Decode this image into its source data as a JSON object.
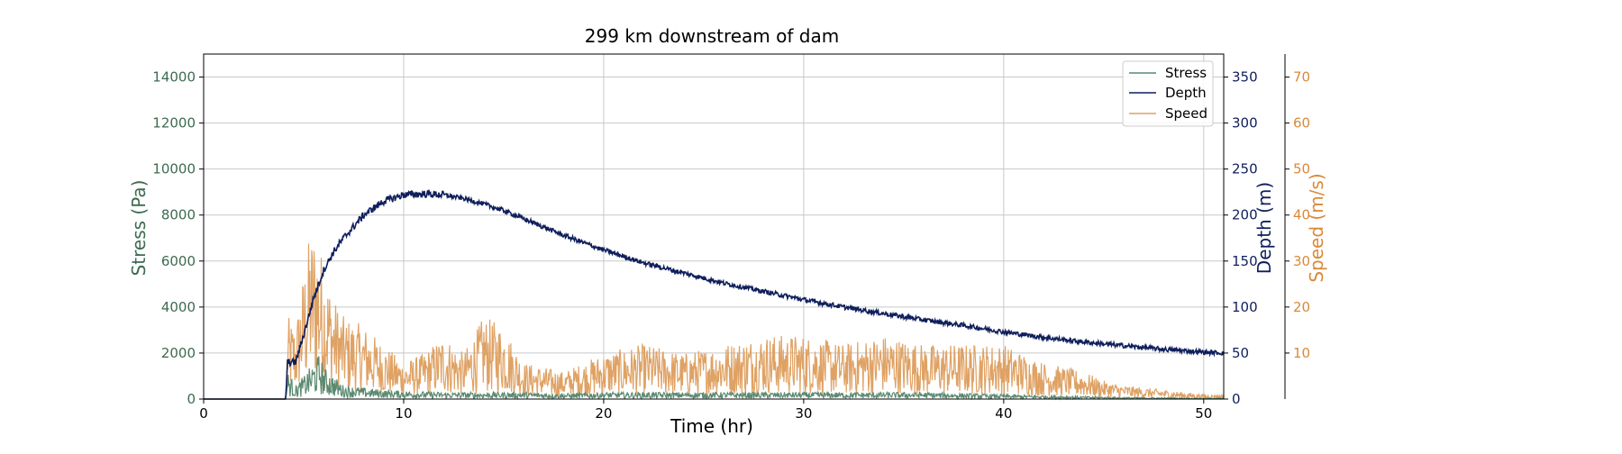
{
  "chart_data": {
    "type": "line",
    "title": "299 km downstream of dam",
    "xlabel": "Time (hr)",
    "xlim": [
      0,
      51
    ],
    "x_ticks": [
      0,
      10,
      20,
      30,
      40,
      50
    ],
    "grid": true,
    "legend_position": "top-right",
    "axes": {
      "stress": {
        "label": "Stress (Pa)",
        "lim": [
          0,
          15000
        ],
        "ticks": [
          0,
          2000,
          4000,
          6000,
          8000,
          10000,
          12000,
          14000
        ],
        "color": "#3d6b4f",
        "position": "left"
      },
      "depth": {
        "label": "Depth (m)",
        "lim": [
          0,
          375
        ],
        "ticks": [
          0,
          50,
          100,
          150,
          200,
          250,
          300,
          350
        ],
        "color": "#0f1f5c",
        "position": "right"
      },
      "speed": {
        "label": "Speed (m/s)",
        "lim": [
          0,
          75
        ],
        "ticks": [
          10,
          20,
          30,
          40,
          50,
          60,
          70
        ],
        "color": "#d98a3a",
        "position": "right-outer"
      }
    },
    "series": [
      {
        "name": "Stress",
        "axis": "stress",
        "color": "#5a8a70",
        "x": [
          0,
          4.1,
          4.2,
          4.6,
          5.0,
          5.5,
          5.8,
          6.0,
          6.5,
          7.0,
          8.0,
          9.0,
          10,
          12,
          14,
          16,
          18,
          20,
          24,
          28,
          32,
          36,
          40,
          42,
          44,
          46,
          48,
          51
        ],
        "y": [
          0,
          0,
          600,
          300,
          500,
          800,
          1000,
          700,
          500,
          300,
          250,
          200,
          180,
          150,
          150,
          150,
          120,
          150,
          150,
          150,
          150,
          150,
          100,
          80,
          60,
          40,
          30,
          20
        ]
      },
      {
        "name": "Depth",
        "axis": "depth",
        "color": "#0f1f5c",
        "x": [
          0,
          4.1,
          4.2,
          4.6,
          5.0,
          5.5,
          6.0,
          6.5,
          7.0,
          8.0,
          9.0,
          10,
          11,
          12,
          13,
          14,
          15,
          16,
          18,
          20,
          22,
          24,
          26,
          28,
          30,
          32,
          34,
          36,
          38,
          40,
          42,
          44,
          46,
          48,
          50,
          51
        ],
        "y": [
          0,
          0,
          40,
          40,
          70,
          110,
          140,
          160,
          175,
          200,
          215,
          222,
          223,
          222,
          218,
          212,
          205,
          196,
          178,
          162,
          148,
          137,
          126,
          117,
          108,
          100,
          93,
          86,
          80,
          73,
          67,
          62,
          58,
          54,
          51,
          50
        ]
      },
      {
        "name": "Speed",
        "axis": "speed",
        "color": "#dfa264",
        "x": [
          0,
          4.1,
          4.2,
          4.6,
          5.0,
          5.3,
          5.6,
          6.0,
          6.5,
          7.0,
          8.0,
          9.0,
          10,
          11,
          12,
          13,
          14,
          15,
          16,
          18,
          20,
          22,
          24,
          26,
          28,
          30,
          32,
          34,
          36,
          38,
          40,
          42,
          44,
          45,
          46,
          48,
          50,
          51
        ],
        "y": [
          0,
          0,
          9,
          8,
          14,
          18,
          19,
          15,
          11,
          9,
          8,
          6,
          4,
          5,
          7,
          5,
          9,
          8,
          4,
          3,
          5,
          6,
          5,
          6,
          7,
          7,
          6,
          7,
          6,
          6,
          6,
          4,
          3,
          2,
          1.5,
          1,
          0.5,
          0.5
        ]
      }
    ]
  }
}
